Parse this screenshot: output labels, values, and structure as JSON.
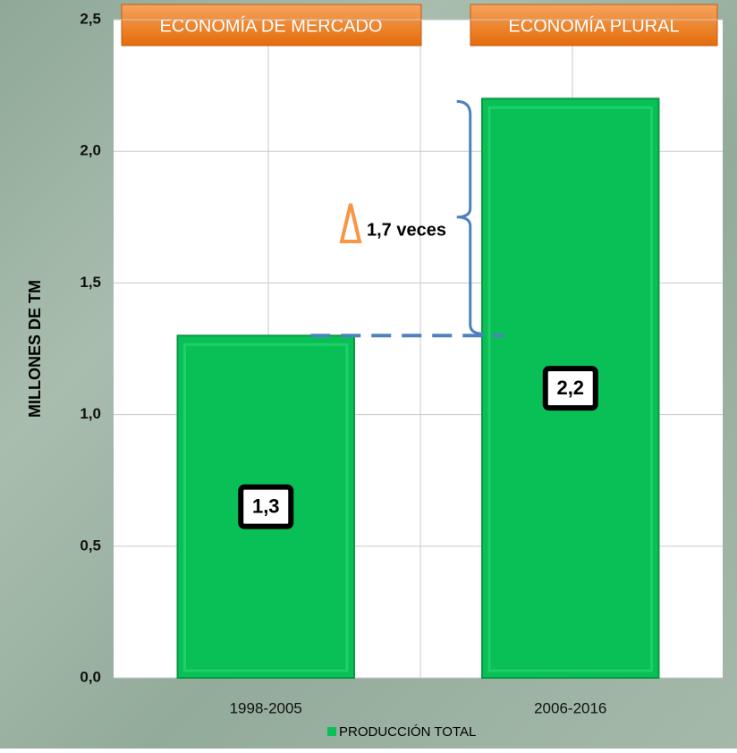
{
  "chart_data": {
    "type": "bar",
    "ylabel": "MILLONES DE TM",
    "categories": [
      "1998-2005",
      "2006-2016"
    ],
    "series": [
      {
        "name": "PRODUCCIÓN TOTAL",
        "color": "#08c056",
        "values": [
          1.3,
          2.2
        ],
        "value_labels": [
          "1,3",
          "2,2"
        ]
      }
    ],
    "ylim": [
      0,
      2.5
    ],
    "yticks": [
      {
        "value": 0,
        "label": "0,0"
      },
      {
        "value": 0.5,
        "label": "0,5"
      },
      {
        "value": 1,
        "label": "1,0"
      },
      {
        "value": 1.5,
        "label": "1,5"
      },
      {
        "value": 2,
        "label": "2,0"
      },
      {
        "value": 2.5,
        "label": "2,5"
      }
    ],
    "grid": true,
    "legend": "bottom",
    "annotations": [
      "ECONOMÍA DE MERCADO",
      "ECONOMÍA PLURAL",
      "1,7 veces"
    ]
  }
}
